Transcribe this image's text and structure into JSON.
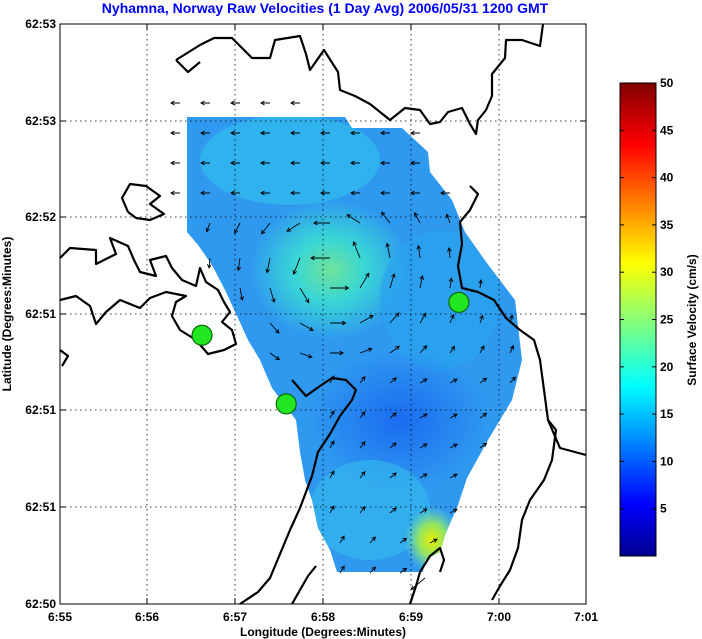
{
  "chart_data": {
    "type": "heatmap",
    "title": "Nyhamna, Norway Raw Velocities (1 Day Avg) 2006/05/31 1200 GMT",
    "xlabel": "Longitude (Degrees:Minutes)",
    "ylabel": "Latitude (Degrees:Minutes)",
    "x_ticks": [
      "6:55",
      "6:56",
      "6:57",
      "6:58",
      "6:59",
      "7:00",
      "7:01"
    ],
    "y_ticks": [
      "62:50",
      "62:51",
      "62:51",
      "62:51",
      "62:52",
      "62:53",
      "62:53"
    ],
    "xlim": [
      0,
      6
    ],
    "ylim": [
      0,
      6
    ],
    "grid": true,
    "colorbar": {
      "label": "Surface Velocity (cm/s)",
      "range": [
        0,
        50
      ],
      "ticks": [
        5,
        10,
        15,
        20,
        25,
        30,
        35,
        40,
        45,
        50
      ],
      "colormap": "jet"
    },
    "sites": [
      {
        "x": 1.62,
        "y": 2.78
      },
      {
        "x": 2.58,
        "y": 2.07
      },
      {
        "x": 4.55,
        "y": 3.12
      }
    ],
    "colors": {
      "title": "#0000ff",
      "site": "#22e622",
      "land_outline": "#000000"
    }
  }
}
